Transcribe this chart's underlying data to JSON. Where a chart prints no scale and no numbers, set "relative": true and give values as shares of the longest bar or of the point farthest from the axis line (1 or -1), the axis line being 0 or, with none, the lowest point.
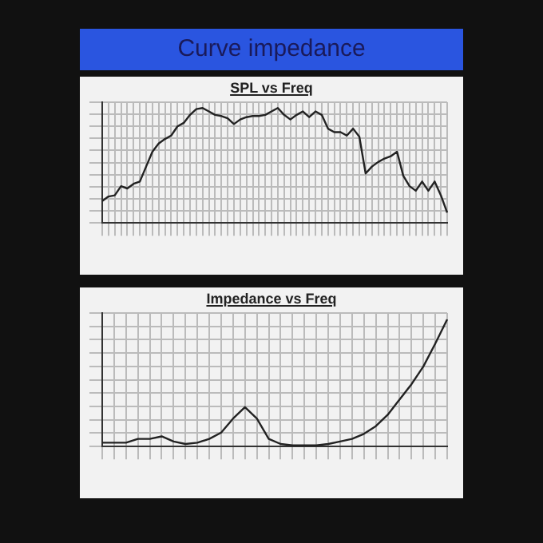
{
  "chart_data": [
    {
      "type": "other",
      "title": "Curve impedance"
    },
    {
      "type": "line",
      "title": "SPL vs Freq",
      "relative": true,
      "grid": true,
      "legend": false,
      "marker": "none",
      "line_style": "solid",
      "categories": [
        null,
        null,
        null,
        null,
        null,
        null,
        null,
        null,
        null,
        null,
        null,
        null,
        null,
        null,
        null,
        null,
        null,
        null,
        null,
        null,
        null,
        null,
        null,
        null,
        null,
        null,
        null,
        null,
        null,
        null,
        null,
        null,
        null,
        null,
        null,
        null,
        null,
        null,
        null,
        null,
        null,
        null,
        null,
        null,
        null,
        null,
        null,
        null,
        null,
        null,
        null,
        null,
        null,
        null,
        null,
        null
      ],
      "series": [
        {
          "color": "#222222",
          "values": [
            0.19,
            0.23,
            0.24,
            0.32,
            0.3,
            0.34,
            0.36,
            0.49,
            0.62,
            0.69,
            0.73,
            0.76,
            0.84,
            0.87,
            0.94,
            0.99,
            1.0,
            0.97,
            0.94,
            0.93,
            0.91,
            0.86,
            0.9,
            0.92,
            0.93,
            0.93,
            0.94,
            0.97,
            1.0,
            0.94,
            0.9,
            0.94,
            0.97,
            0.92,
            0.97,
            0.94,
            0.82,
            0.79,
            0.79,
            0.76,
            0.82,
            0.75,
            0.43,
            0.49,
            0.53,
            0.56,
            0.58,
            0.62,
            0.41,
            0.32,
            0.28,
            0.36,
            0.28,
            0.36,
            0.24,
            0.09
          ]
        }
      ]
    },
    {
      "type": "line",
      "title": "Impedance vs Freq",
      "relative": true,
      "grid": true,
      "legend": false,
      "marker": "none",
      "line_style": "solid",
      "categories": [
        null,
        null,
        null,
        null,
        null,
        null,
        null,
        null,
        null,
        null,
        null,
        null,
        null,
        null,
        null,
        null,
        null,
        null,
        null,
        null,
        null,
        null,
        null,
        null,
        null,
        null,
        null,
        null,
        null,
        null
      ],
      "series": [
        {
          "color": "#222222",
          "values": [
            0.03,
            0.03,
            0.03,
            0.06,
            0.06,
            0.08,
            0.04,
            0.02,
            0.03,
            0.06,
            0.11,
            0.22,
            0.31,
            0.22,
            0.06,
            0.02,
            0.01,
            0.01,
            0.01,
            0.02,
            0.04,
            0.06,
            0.1,
            0.16,
            0.25,
            0.37,
            0.49,
            0.63,
            0.81,
            1.0
          ]
        }
      ]
    }
  ]
}
